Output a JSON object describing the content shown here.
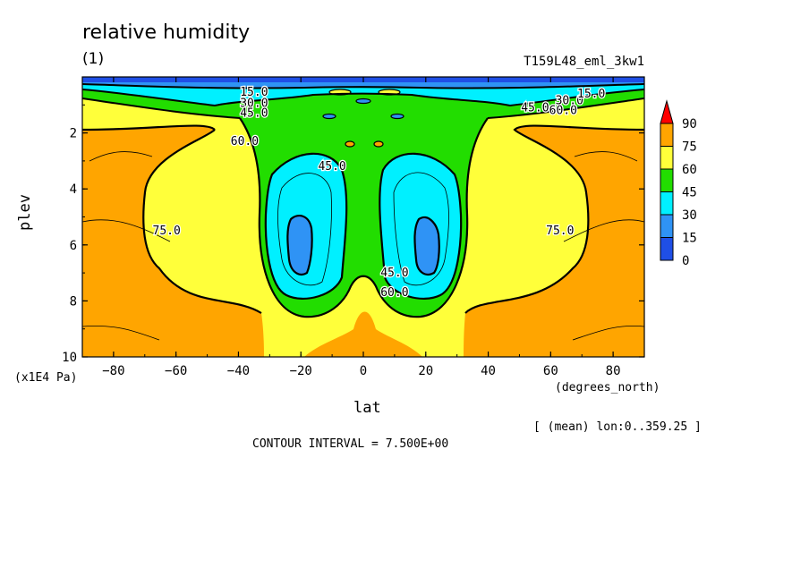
{
  "title": "relative humidity",
  "subtitle": "(1)",
  "run_name": "T159L48_eml_3kw1",
  "contour_interval": "CONTOUR INTERVAL = 7.500E+00",
  "mean_info": "[ (mean) lon:0..359.25 ]",
  "chart_data": {
    "type": "heatmap",
    "title": "relative humidity",
    "subtitle": "(1)",
    "xlabel": "lat",
    "xunit": "(degrees_north)",
    "ylabel": "plev",
    "yunit": "(x1E4 Pa)",
    "xlim": [
      -90,
      90
    ],
    "ylim": [
      10,
      0
    ],
    "y_inverted": true,
    "xticks": [
      -80,
      -60,
      -40,
      -20,
      0,
      20,
      40,
      60,
      80
    ],
    "xtick_labels": [
      "−80",
      "−60",
      "−40",
      "−20",
      "0",
      "20",
      "40",
      "60",
      "80"
    ],
    "yticks": [
      2,
      4,
      6,
      8,
      10
    ],
    "ytick_labels": [
      "2",
      "4",
      "6",
      "8",
      "10"
    ],
    "levels": [
      0,
      15,
      30,
      45,
      60,
      75,
      90
    ],
    "colorbar_labels": [
      "0",
      "15",
      "30",
      "45",
      "60",
      "75",
      "90"
    ],
    "colors": [
      "#1f4fe6",
      "#2f93f5",
      "#00f0ff",
      "#22dd00",
      "#ffff3a",
      "#ffa500"
    ],
    "colorbar_top_arrow_color": "#ff0000",
    "contour_labels": [
      {
        "text": "15.0",
        "lat": -35,
        "plev": 0.55
      },
      {
        "text": "30.0",
        "lat": -35,
        "plev": 0.95
      },
      {
        "text": "45.0",
        "lat": -35,
        "plev": 1.3
      },
      {
        "text": "60.0",
        "lat": -38,
        "plev": 2.3
      },
      {
        "text": "45.0",
        "lat": -10,
        "plev": 3.2
      },
      {
        "text": "75.0",
        "lat": -63,
        "plev": 5.5
      },
      {
        "text": "45.0",
        "lat": 10,
        "plev": 7.0
      },
      {
        "text": "60.0",
        "lat": 10,
        "plev": 7.7
      },
      {
        "text": "75.0",
        "lat": 63,
        "plev": 5.5
      },
      {
        "text": "45.0",
        "lat": 55,
        "plev": 1.1
      },
      {
        "text": "60.0",
        "lat": 64,
        "plev": 1.2
      },
      {
        "text": "30.0",
        "lat": 66,
        "plev": 0.85
      },
      {
        "text": "15.0",
        "lat": 73,
        "plev": 0.6
      }
    ],
    "grid": false,
    "legend_position": "right"
  }
}
